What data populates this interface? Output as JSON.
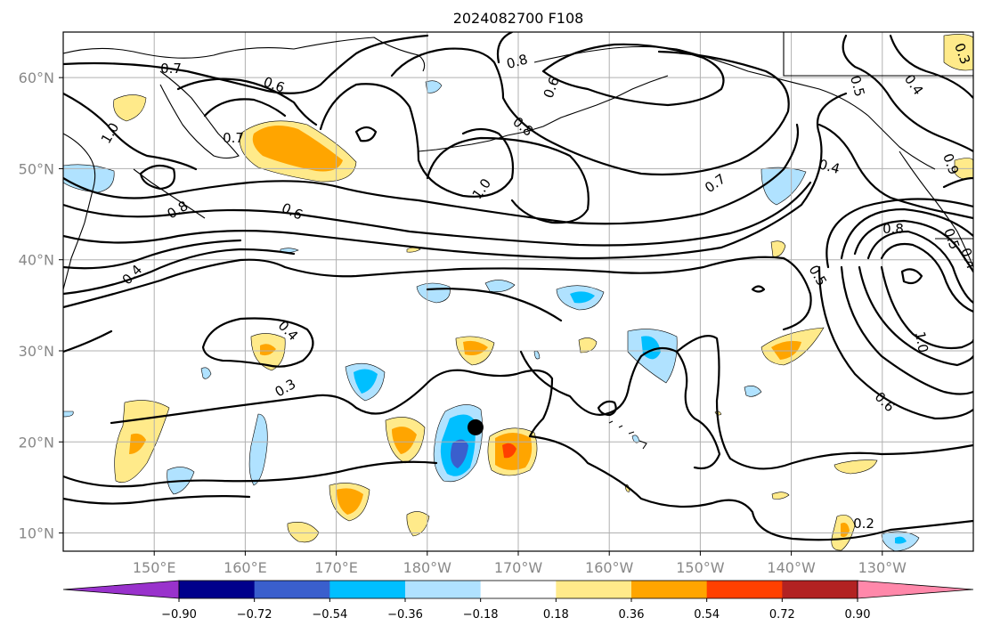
{
  "title": "2024082700 F108",
  "map": {
    "type": "filled-contour-map",
    "region": "North Pacific",
    "lat_range": [
      8,
      65
    ],
    "lon_range_east": [
      140,
      240
    ],
    "latitude_ticks": [
      "60°N",
      "50°N",
      "40°N",
      "30°N",
      "20°N",
      "10°N"
    ],
    "longitude_ticks": [
      "150°E",
      "160°E",
      "170°E",
      "180°W",
      "170°W",
      "160°W",
      "150°W",
      "140°W",
      "130°W"
    ],
    "grid": true,
    "marker": {
      "name": "storm-position-marker",
      "lat": 21.6,
      "lon": 185.3,
      "color": "#000000"
    },
    "line_contour_labels": [
      "0.7",
      "0.6",
      "0.7",
      "0.8",
      "0.6",
      "1.0",
      "0.8",
      "1.0",
      "0.7",
      "0.8",
      "0.6",
      "0.4",
      "0.4",
      "0.3",
      "0.5",
      "0.4",
      "0.5",
      "0.4",
      "0.8",
      "0.5",
      "0.4",
      "1.0",
      "0.6",
      "0.2",
      "0.3",
      "0.9"
    ]
  },
  "colorbar": {
    "tick_labels": [
      "−0.90",
      "−0.72",
      "−0.54",
      "−0.36",
      "−0.18",
      "0.18",
      "0.36",
      "0.54",
      "0.72",
      "0.90"
    ],
    "colors": [
      "#9932cc",
      "#00008b",
      "#3a5fcd",
      "#00bfff",
      "#b0e2ff",
      "#ffffff",
      "#ffea8a",
      "#ffa500",
      "#ff4000",
      "#b22222",
      "#ff88aa"
    ]
  },
  "chart_data": {
    "type": "heatmap",
    "title": "2024082700 F108",
    "xticks": [
      "150°E",
      "160°E",
      "170°E",
      "180°W",
      "170°W",
      "160°W",
      "150°W",
      "140°W",
      "130°W"
    ],
    "yticks": [
      "60°N",
      "50°N",
      "40°N",
      "30°N",
      "20°N",
      "10°N"
    ],
    "levels": [
      -0.9,
      -0.72,
      -0.54,
      -0.36,
      -0.18,
      0.18,
      0.36,
      0.54,
      0.72,
      0.9
    ]
  }
}
